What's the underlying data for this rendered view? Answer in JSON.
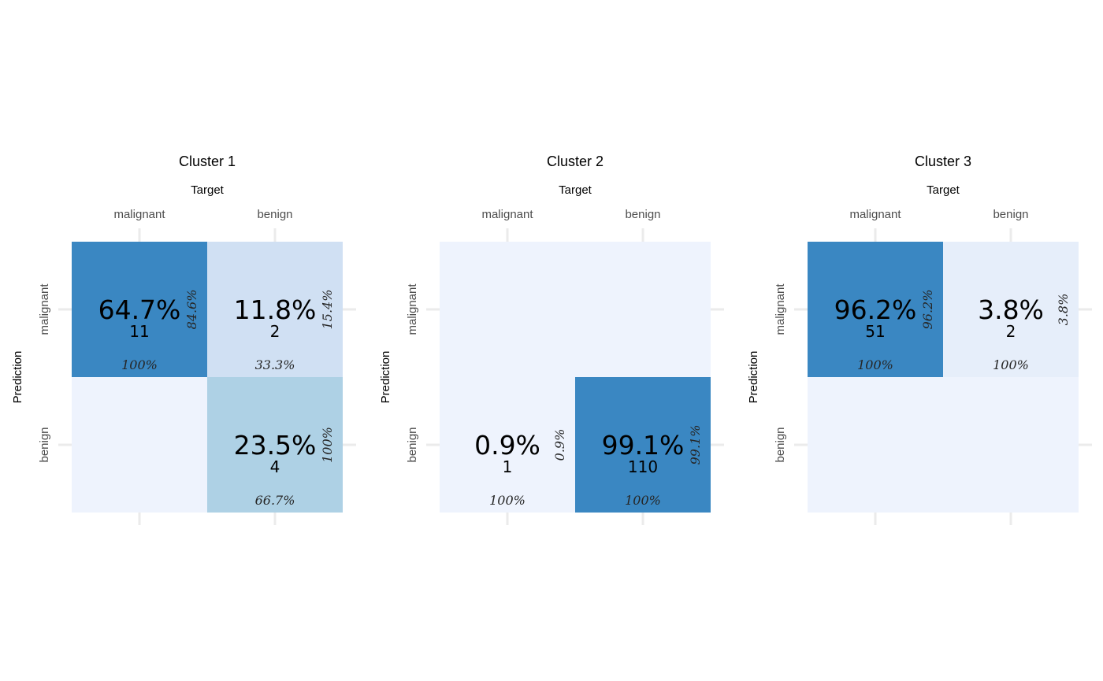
{
  "chart_data": [
    {
      "type": "heatmap",
      "title": "Cluster 1",
      "xlabel": "Target",
      "ylabel": "Prediction",
      "x_categories": [
        "malignant",
        "benign"
      ],
      "y_categories": [
        "malignant",
        "benign"
      ],
      "cells": [
        {
          "prediction": "malignant",
          "target": "malignant",
          "fill": "#3a87c2",
          "overall": "64.7%",
          "count": "11",
          "row_pct": "84.6%",
          "col_pct": "100%"
        },
        {
          "prediction": "malignant",
          "target": "benign",
          "fill": "#d0e0f3",
          "overall": "11.8%",
          "count": "2",
          "row_pct": "15.4%",
          "col_pct": "33.3%"
        },
        {
          "prediction": "benign",
          "target": "malignant",
          "fill": "#eef3fd",
          "overall": "",
          "count": "",
          "row_pct": "",
          "col_pct": ""
        },
        {
          "prediction": "benign",
          "target": "benign",
          "fill": "#aed1e5",
          "overall": "23.5%",
          "count": "4",
          "row_pct": "100%",
          "col_pct": "66.7%"
        }
      ]
    },
    {
      "type": "heatmap",
      "title": "Cluster 2",
      "xlabel": "Target",
      "ylabel": "Prediction",
      "x_categories": [
        "malignant",
        "benign"
      ],
      "y_categories": [
        "malignant",
        "benign"
      ],
      "cells": [
        {
          "prediction": "malignant",
          "target": "malignant",
          "fill": "#eef3fd",
          "overall": "",
          "count": "",
          "row_pct": "",
          "col_pct": ""
        },
        {
          "prediction": "malignant",
          "target": "benign",
          "fill": "#eef3fd",
          "overall": "",
          "count": "",
          "row_pct": "",
          "col_pct": ""
        },
        {
          "prediction": "benign",
          "target": "malignant",
          "fill": "#eef3fd",
          "overall": "0.9%",
          "count": "1",
          "row_pct": "0.9%",
          "col_pct": "100%"
        },
        {
          "prediction": "benign",
          "target": "benign",
          "fill": "#3a87c2",
          "overall": "99.1%",
          "count": "110",
          "row_pct": "99.1%",
          "col_pct": "100%"
        }
      ]
    },
    {
      "type": "heatmap",
      "title": "Cluster 3",
      "xlabel": "Target",
      "ylabel": "Prediction",
      "x_categories": [
        "malignant",
        "benign"
      ],
      "y_categories": [
        "malignant",
        "benign"
      ],
      "cells": [
        {
          "prediction": "malignant",
          "target": "malignant",
          "fill": "#3a87c2",
          "overall": "96.2%",
          "count": "51",
          "row_pct": "96.2%",
          "col_pct": "100%"
        },
        {
          "prediction": "malignant",
          "target": "benign",
          "fill": "#e6eefa",
          "overall": "3.8%",
          "count": "2",
          "row_pct": "3.8%",
          "col_pct": "100%"
        },
        {
          "prediction": "benign",
          "target": "malignant",
          "fill": "#eef3fd",
          "overall": "",
          "count": "",
          "row_pct": "",
          "col_pct": ""
        },
        {
          "prediction": "benign",
          "target": "benign",
          "fill": "#eef3fd",
          "overall": "",
          "count": "",
          "row_pct": "",
          "col_pct": ""
        }
      ]
    }
  ]
}
